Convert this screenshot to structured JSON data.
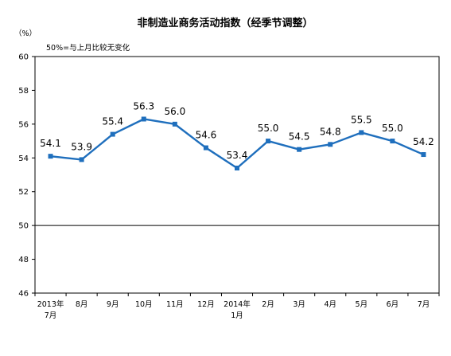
{
  "chart_data": {
    "type": "line",
    "title": "非制造业商务活动指数（经季节调整）",
    "ylabel": "（%）",
    "annotation": "50%=与上月比较无变化",
    "categories": [
      "2013年\n7月",
      "8月",
      "9月",
      "10月",
      "11月",
      "12月",
      "2014年\n1月",
      "2月",
      "3月",
      "4月",
      "5月",
      "6月",
      "7月"
    ],
    "series": [
      {
        "values": [
          54.1,
          53.9,
          55.4,
          56.3,
          56.0,
          54.6,
          53.4,
          55.0,
          54.5,
          54.8,
          55.5,
          55.0,
          54.2
        ]
      }
    ],
    "ylim": [
      46,
      60
    ],
    "yticks": [
      46,
      48,
      50,
      52,
      54,
      56,
      58,
      60
    ],
    "reference_line": 50,
    "grid": false,
    "colors": {
      "line": "#1f6fbd",
      "axis": "#000000"
    }
  }
}
